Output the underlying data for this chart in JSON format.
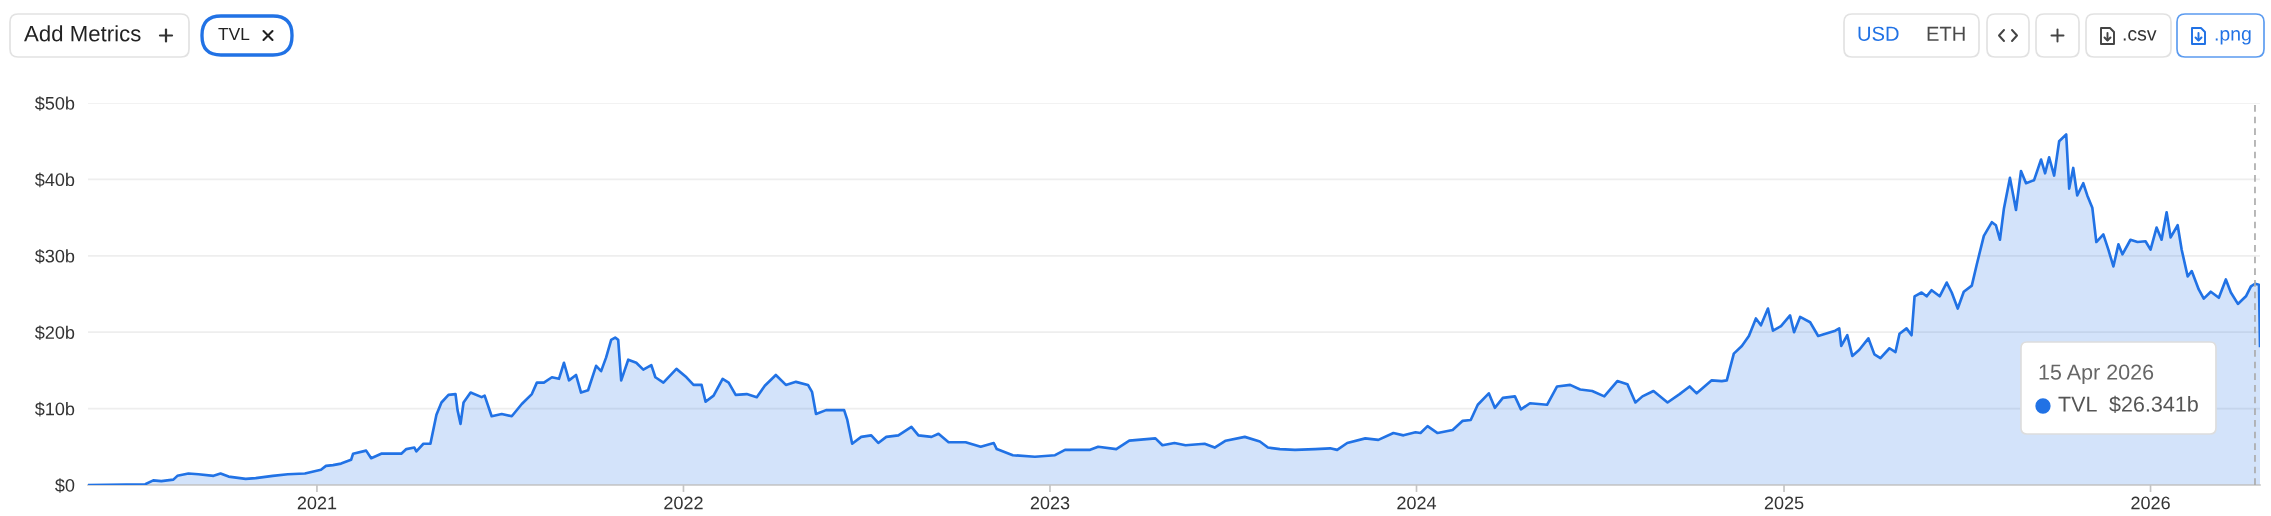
{
  "chart_data": {
    "type": "area",
    "x": [
      "2020-05-18",
      "2020-07-14",
      "2020-07-22",
      "2020-07-30",
      "2020-08-11",
      "2020-08-15",
      "2020-08-26",
      "2020-09-05",
      "2020-09-20",
      "2020-09-27",
      "2020-10-05",
      "2020-10-22",
      "2020-11-01",
      "2020-11-18",
      "2020-12-03",
      "2020-12-20",
      "2021-01-05",
      "2021-01-10",
      "2021-01-17",
      "2021-01-25",
      "2021-02-04",
      "2021-02-06",
      "2021-02-19",
      "2021-02-24",
      "2021-03-06",
      "2021-03-26",
      "2021-03-31",
      "2021-04-08",
      "2021-04-10",
      "2021-04-17",
      "2021-04-24",
      "2021-04-30",
      "2021-05-05",
      "2021-05-12",
      "2021-05-19",
      "2021-05-21",
      "2021-05-24",
      "2021-05-27",
      "2021-06-03",
      "2021-06-14",
      "2021-06-17",
      "2021-06-24",
      "2021-07-04",
      "2021-07-14",
      "2021-07-24",
      "2021-08-03",
      "2021-08-08",
      "2021-08-15",
      "2021-08-23",
      "2021-08-30",
      "2021-09-04",
      "2021-09-09",
      "2021-09-16",
      "2021-09-21",
      "2021-09-28",
      "2021-10-06",
      "2021-10-11",
      "2021-10-16",
      "2021-10-21",
      "2021-10-25",
      "2021-10-28",
      "2021-10-31",
      "2021-11-07",
      "2021-11-15",
      "2021-11-22",
      "2021-11-30",
      "2021-12-04",
      "2021-12-12",
      "2021-12-25",
      "2022-01-04",
      "2022-01-11",
      "2022-01-19",
      "2022-01-23",
      "2022-01-31",
      "2022-02-09",
      "2022-02-15",
      "2022-02-22",
      "2022-03-05",
      "2022-03-15",
      "2022-03-23",
      "2022-04-03",
      "2022-04-13",
      "2022-04-23",
      "2022-05-05",
      "2022-05-09",
      "2022-05-13",
      "2022-05-23",
      "2022-06-10",
      "2022-06-13",
      "2022-06-18",
      "2022-06-27",
      "2022-07-07",
      "2022-07-14",
      "2022-07-22",
      "2022-08-03",
      "2022-08-16",
      "2022-08-23",
      "2022-09-05",
      "2022-09-12",
      "2022-09-22",
      "2022-10-09",
      "2022-10-24",
      "2022-11-06",
      "2022-11-09",
      "2022-11-25",
      "2022-12-17",
      "2023-01-06",
      "2023-01-16",
      "2023-02-10",
      "2023-02-18",
      "2023-03-08",
      "2023-03-21",
      "2023-04-16",
      "2023-04-23",
      "2023-05-05",
      "2023-05-16",
      "2023-06-04",
      "2023-06-14",
      "2023-06-25",
      "2023-07-14",
      "2023-07-29",
      "2023-08-06",
      "2023-08-18",
      "2023-09-02",
      "2023-09-22",
      "2023-10-07",
      "2023-10-14",
      "2023-10-24",
      "2023-11-11",
      "2023-11-24",
      "2023-12-09",
      "2023-12-19",
      "2023-12-31",
      "2024-01-05",
      "2024-01-12",
      "2024-01-22",
      "2024-02-06",
      "2024-02-16",
      "2024-02-24",
      "2024-03-02",
      "2024-03-13",
      "2024-03-19",
      "2024-03-27",
      "2024-04-08",
      "2024-04-14",
      "2024-04-23",
      "2024-05-10",
      "2024-05-20",
      "2024-06-02",
      "2024-06-12",
      "2024-06-24",
      "2024-07-06",
      "2024-07-19",
      "2024-07-29",
      "2024-08-06",
      "2024-08-13",
      "2024-08-24",
      "2024-09-07",
      "2024-09-19",
      "2024-09-29",
      "2024-10-06",
      "2024-10-21",
      "2024-10-31",
      "2024-11-05",
      "2024-11-12",
      "2024-11-20",
      "2024-11-27",
      "2024-12-04",
      "2024-12-09",
      "2024-12-16",
      "2024-12-21",
      "2024-12-29",
      "2025-01-07",
      "2025-01-11",
      "2025-01-17",
      "2025-01-27",
      "2025-02-04",
      "2025-02-21",
      "2025-02-25",
      "2025-02-27",
      "2025-03-05",
      "2025-03-10",
      "2025-03-17",
      "2025-03-26",
      "2025-04-01",
      "2025-04-07",
      "2025-04-16",
      "2025-04-22",
      "2025-04-26",
      "2025-05-03",
      "2025-05-08",
      "2025-05-11",
      "2025-05-18",
      "2025-05-23",
      "2025-05-28",
      "2025-06-05",
      "2025-06-12",
      "2025-06-17",
      "2025-06-23",
      "2025-06-29",
      "2025-07-07",
      "2025-07-12",
      "2025-07-19",
      "2025-07-27",
      "2025-07-31",
      "2025-08-04",
      "2025-08-08",
      "2025-08-14",
      "2025-08-20",
      "2025-08-25",
      "2025-08-30",
      "2025-09-07",
      "2025-09-14",
      "2025-09-18",
      "2025-09-22",
      "2025-09-27",
      "2025-10-02",
      "2025-10-09",
      "2025-10-12",
      "2025-10-16",
      "2025-10-20",
      "2025-10-26",
      "2025-10-30",
      "2025-11-04",
      "2025-11-08",
      "2025-11-15",
      "2025-11-20",
      "2025-11-25",
      "2025-11-30",
      "2025-12-04",
      "2025-12-12",
      "2025-12-19",
      "2025-12-27",
      "2026-01-01",
      "2026-01-07",
      "2026-01-12",
      "2026-01-17",
      "2026-01-21",
      "2026-01-28",
      "2026-02-01",
      "2026-02-07",
      "2026-02-11",
      "2026-02-18",
      "2026-02-23",
      "2026-03-02",
      "2026-03-10",
      "2026-03-17",
      "2026-03-22",
      "2026-03-29",
      "2026-04-06",
      "2026-04-11",
      "2026-04-15",
      "2026-04-19",
      "2026-04-20"
    ],
    "series": [
      {
        "name": "TVL",
        "color": "#2172e5",
        "values": [
          0,
          0.1,
          0.6,
          0.5,
          0.7,
          1.2,
          1.5,
          1.4,
          1.2,
          1.5,
          1.1,
          0.8,
          0.9,
          1.2,
          1.4,
          1.5,
          2.0,
          2.5,
          2.6,
          2.8,
          3.3,
          4.1,
          4.5,
          3.5,
          4.1,
          4.1,
          4.7,
          4.9,
          4.4,
          5.4,
          5.4,
          9.2,
          10.8,
          11.8,
          11.9,
          9.8,
          8.0,
          10.8,
          12.1,
          11.5,
          11.7,
          9.0,
          9.3,
          9.0,
          10.6,
          11.9,
          13.4,
          13.4,
          14.1,
          13.9,
          16.0,
          13.7,
          14.4,
          12.1,
          12.4,
          15.6,
          14.9,
          16.7,
          19.0,
          19.3,
          19.0,
          13.7,
          16.4,
          16.0,
          15.1,
          15.7,
          14.1,
          13.4,
          15.2,
          14.1,
          13.1,
          13.1,
          10.9,
          11.7,
          13.9,
          13.4,
          11.8,
          11.9,
          11.5,
          13.0,
          14.4,
          13.1,
          13.5,
          13.1,
          12.2,
          9.3,
          9.8,
          9.8,
          8.6,
          5.4,
          6.3,
          6.5,
          5.5,
          6.3,
          6.5,
          7.6,
          6.5,
          6.3,
          6.7,
          5.6,
          5.6,
          5.0,
          5.5,
          4.7,
          3.9,
          3.7,
          3.9,
          4.6,
          4.6,
          5.0,
          4.7,
          5.8,
          6.1,
          5.2,
          5.5,
          5.2,
          5.4,
          4.9,
          5.8,
          6.3,
          5.7,
          4.9,
          4.7,
          4.6,
          4.7,
          4.8,
          4.6,
          5.5,
          6.1,
          5.9,
          6.8,
          6.5,
          6.9,
          6.8,
          7.7,
          6.8,
          7.2,
          8.4,
          8.5,
          10.5,
          12.0,
          10.1,
          11.4,
          11.6,
          9.9,
          10.7,
          10.5,
          12.9,
          13.1,
          12.5,
          12.3,
          11.6,
          13.6,
          13.2,
          10.8,
          11.6,
          12.3,
          10.8,
          11.9,
          12.9,
          12.0,
          13.7,
          13.6,
          13.7,
          17.2,
          18.2,
          19.5,
          21.8,
          20.9,
          23.1,
          20.2,
          20.8,
          22.2,
          20.0,
          22.0,
          21.3,
          19.5,
          20.2,
          20.5,
          18.2,
          19.6,
          16.9,
          17.7,
          19.2,
          17.1,
          16.6,
          17.9,
          17.4,
          19.8,
          20.5,
          19.6,
          24.7,
          25.2,
          24.7,
          25.5,
          24.7,
          26.5,
          25.2,
          23.1,
          25.3,
          26.1,
          28.9,
          32.6,
          34.4,
          34.0,
          32.1,
          36.2,
          40.2,
          36.0,
          41.1,
          39.5,
          39.9,
          42.6,
          40.8,
          42.9,
          40.5,
          45.0,
          45.9,
          38.8,
          41.5,
          37.9,
          39.5,
          37.9,
          36.3,
          31.8,
          32.8,
          30.8,
          28.6,
          31.5,
          30.2,
          32.1,
          31.8,
          31.9,
          30.8,
          33.7,
          32.1,
          35.7,
          32.4,
          34.0,
          30.8,
          27.3,
          28.0,
          25.6,
          24.4,
          25.3,
          24.5,
          26.9,
          25.2,
          23.7,
          24.7,
          26.0,
          26.341,
          26.2,
          18.2
        ]
      }
    ],
    "xlim": [
      "2020-05-18",
      "2026-04-20"
    ],
    "xticks": [
      {
        "value": "2021-01-01",
        "label": "2021"
      },
      {
        "value": "2022-01-01",
        "label": "2022"
      },
      {
        "value": "2023-01-01",
        "label": "2023"
      },
      {
        "value": "2024-01-01",
        "label": "2024"
      },
      {
        "value": "2025-01-01",
        "label": "2025"
      },
      {
        "value": "2026-01-01",
        "label": "2026"
      }
    ],
    "ylim": [
      0,
      50
    ],
    "yticks": [
      {
        "value": 0,
        "label": "$0"
      },
      {
        "value": 10,
        "label": "$10b"
      },
      {
        "value": 20,
        "label": "$20b"
      },
      {
        "value": 30,
        "label": "$30b"
      },
      {
        "value": 40,
        "label": "$40b"
      },
      {
        "value": 50,
        "label": "$50b"
      }
    ],
    "grid": "y",
    "ref_lines": [
      {
        "axis": "x",
        "value": "2026-04-15",
        "color": "#aaaaaa",
        "line_style": "dashed"
      }
    ],
    "annotations": [
      "Add Metrics",
      "USD",
      "ETH",
      ".csv",
      ".png",
      "15 Apr 2026",
      "$26.341b"
    ]
  }
}
